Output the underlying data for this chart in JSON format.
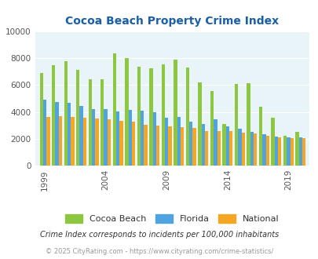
{
  "title": "Cocoa Beach Property Crime Index",
  "years": [
    1999,
    2000,
    2001,
    2002,
    2003,
    2004,
    2005,
    2006,
    2007,
    2008,
    2009,
    2010,
    2011,
    2012,
    2013,
    2014,
    2015,
    2016,
    2017,
    2018,
    2019,
    2020
  ],
  "cocoa_beach": [
    6900,
    7500,
    7750,
    7100,
    6450,
    6450,
    8350,
    8000,
    7350,
    7250,
    7550,
    7900,
    7300,
    6200,
    5550,
    3100,
    6050,
    6150,
    4400,
    3550,
    2250,
    2500
  ],
  "florida": [
    4900,
    4750,
    4650,
    4450,
    4200,
    4200,
    4050,
    4150,
    4100,
    3950,
    3550,
    3600,
    3250,
    3100,
    3450,
    2900,
    2750,
    2500,
    2350,
    2150,
    2100,
    2100
  ],
  "national": [
    3600,
    3700,
    3650,
    3550,
    3500,
    3450,
    3350,
    3300,
    3050,
    3000,
    2950,
    2850,
    2800,
    2600,
    2550,
    2600,
    2450,
    2400,
    2250,
    2100,
    2050,
    2050
  ],
  "cocoa_color": "#8dc63f",
  "florida_color": "#4fa3e0",
  "national_color": "#f5a623",
  "bg_color": "#e8f4f8",
  "ylim": [
    0,
    10000
  ],
  "yticks": [
    0,
    2000,
    4000,
    6000,
    8000,
    10000
  ],
  "xtick_labels": [
    "1999",
    "2004",
    "2009",
    "2014",
    "2019"
  ],
  "xtick_positions": [
    0,
    5,
    10,
    15,
    20
  ],
  "title_color": "#1a5fa8",
  "subtitle": "Crime Index corresponds to incidents per 100,000 inhabitants",
  "subtitle_color": "#333333",
  "footer": "© 2025 CityRating.com - https://www.cityrating.com/crime-statistics/",
  "footer_color": "#999999",
  "legend_labels": [
    "Cocoa Beach",
    "Florida",
    "National"
  ],
  "bar_width": 0.28
}
